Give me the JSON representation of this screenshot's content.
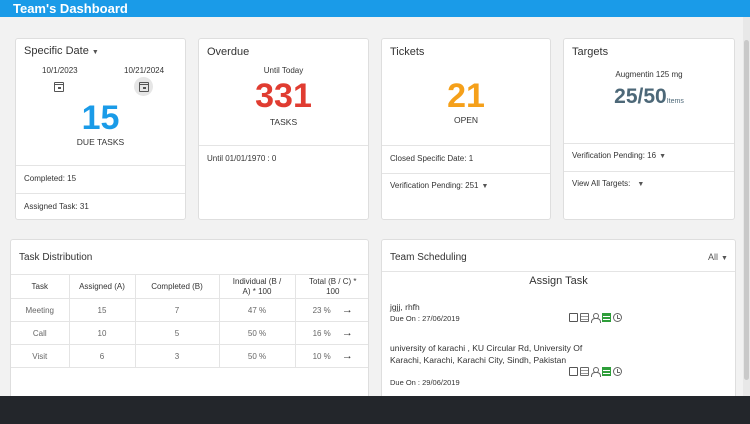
{
  "header": {
    "title": "Team's Dashboard"
  },
  "specific_date": {
    "title": "Specific Date",
    "date_from": "10/1/2023",
    "date_to": "10/21/2024",
    "count": "15",
    "count_label": "DUE TASKS",
    "completed": "Completed:  15",
    "assigned": "Assigned Task:  31"
  },
  "overdue": {
    "title": "Overdue",
    "subtitle": "Until Today",
    "count": "331",
    "count_label": "TASKS",
    "until": "Until 01/01/1970 :  0"
  },
  "tickets": {
    "title": "Tickets",
    "count": "21",
    "count_label": "OPEN",
    "closed": "Closed Specific Date:  1",
    "verification": "Verification Pending:  251"
  },
  "targets": {
    "title": "Targets",
    "product": "Augmentin 125 mg",
    "progress": "25/50",
    "unit": "Items",
    "verification": "Verification Pending:  16",
    "view_all": "View All Targets:"
  },
  "task_distribution": {
    "title": "Task Distribution",
    "columns": [
      "Task",
      "Assigned (A)",
      "Completed (B)",
      "Individual (B / A) * 100",
      "Total (B / C) * 100"
    ],
    "rows": [
      {
        "task": "Meeting",
        "assigned": "15",
        "completed": "7",
        "individual": "47 %",
        "total": "23 %"
      },
      {
        "task": "Call",
        "assigned": "10",
        "completed": "5",
        "individual": "50 %",
        "total": "16 %"
      },
      {
        "task": "Visit",
        "assigned": "6",
        "completed": "3",
        "individual": "50 %",
        "total": "10 %"
      }
    ]
  },
  "team_scheduling": {
    "title": "Team Scheduling",
    "filter": "All",
    "subheading": "Assign Task",
    "tasks": [
      {
        "name": "jgjj, rhfh",
        "due": "Due On : 27/06/2019"
      },
      {
        "name": "university of karachi , KU Circular Rd, University Of Karachi, Karachi, Karachi City, Sindh, Pakistan",
        "due": "Due On : 29/06/2019"
      }
    ]
  },
  "colors": {
    "header": "#1a9be8",
    "due_tasks": "#1a9be8",
    "overdue": "#e03c31",
    "tickets": "#f5a01a",
    "targets": "#4d6878"
  }
}
